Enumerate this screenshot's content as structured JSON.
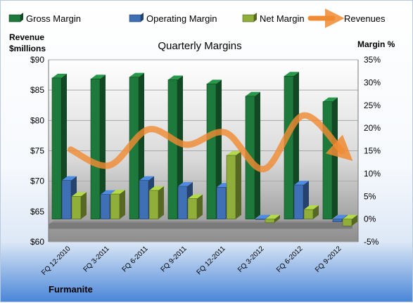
{
  "chart_data": {
    "type": "bar",
    "title": "Quarterly Margins",
    "categories": [
      "FQ 12-2010",
      "FQ 3-2011",
      "FQ 6-2011",
      "FQ 9-2011",
      "FQ 12-2011",
      "FQ 3-2012",
      "FQ 6-2012",
      "FQ 9-2012"
    ],
    "series": [
      {
        "name": "Gross Margin",
        "axis": "right",
        "kind": "bar",
        "color": "#1e7a3c",
        "values": [
          31.0,
          30.8,
          31.2,
          30.6,
          29.7,
          27.0,
          31.4,
          25.8
        ]
      },
      {
        "name": "Operating Margin",
        "axis": "right",
        "kind": "bar",
        "color": "#3f6fb5",
        "values": [
          8.5,
          5.4,
          8.5,
          7.2,
          7.0,
          -0.1,
          7.5,
          -0.6
        ]
      },
      {
        "name": "Net Margin",
        "axis": "right",
        "kind": "bar",
        "color": "#8fae3a",
        "values": [
          5.0,
          5.5,
          6.3,
          4.5,
          14.0,
          -0.8,
          2.1,
          -1.5
        ]
      },
      {
        "name": "Revenues",
        "axis": "left",
        "kind": "line",
        "color": "#f08b33",
        "values": [
          75.2,
          72.6,
          78.5,
          76.0,
          78.0,
          72.0,
          80.8,
          75.0
        ]
      }
    ],
    "y_left": {
      "label_lines": [
        "Revenue",
        "$millions"
      ],
      "ticks": [
        "$60",
        "$65",
        "$70",
        "$75",
        "$80",
        "$85",
        "$90"
      ],
      "range": [
        60,
        90
      ]
    },
    "y_right": {
      "label": "Margin %",
      "ticks": [
        "-5%",
        "0%",
        "5%",
        "10%",
        "15%",
        "20%",
        "25%",
        "30%",
        "35%"
      ],
      "range": [
        -5,
        35
      ]
    },
    "grid": true,
    "legend_position": "top",
    "brand": "Furmanite"
  }
}
